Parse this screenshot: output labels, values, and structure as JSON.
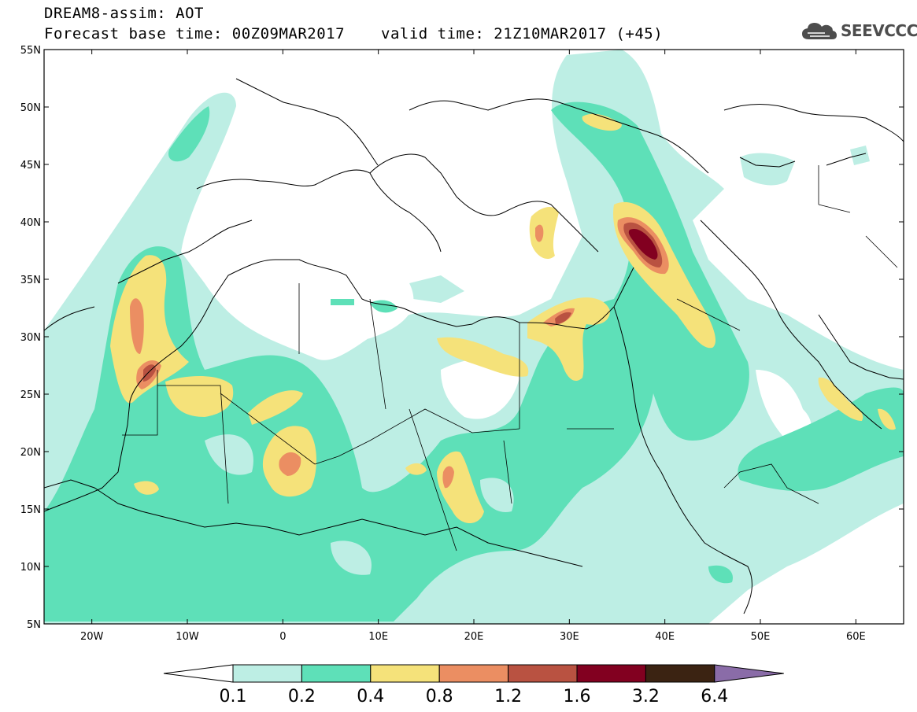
{
  "header": {
    "title": "DREAM8-assim: AOT",
    "base_time": "Forecast base time: 00Z09MAR2017",
    "valid_time": "valid time: 21Z10MAR2017 (+45)",
    "logo_text": "SEEVCCC"
  },
  "map": {
    "lon_range": [
      -25,
      65
    ],
    "lat_range": [
      5,
      55
    ],
    "lat_ticks": [
      "5N",
      "10N",
      "15N",
      "20N",
      "25N",
      "30N",
      "35N",
      "40N",
      "45N",
      "50N",
      "55N"
    ],
    "lon_ticks": [
      "20W",
      "10W",
      "0",
      "10E",
      "20E",
      "30E",
      "40E",
      "50E",
      "60E"
    ]
  },
  "colorbar": {
    "labels": [
      "0.1",
      "0.2",
      "0.4",
      "0.8",
      "1.2",
      "1.6",
      "3.2",
      "6.4"
    ],
    "colors": [
      "#ffffff",
      "#bdeee4",
      "#5ee0b8",
      "#f5e27a",
      "#eb8e62",
      "#b95241",
      "#820020",
      "#3b2312",
      "#8a6ca8"
    ]
  }
}
